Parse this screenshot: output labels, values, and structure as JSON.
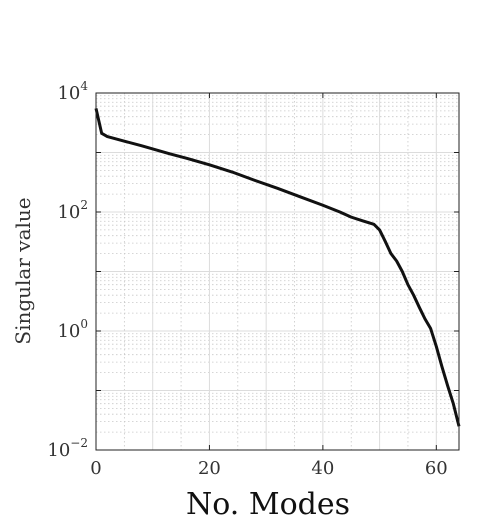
{
  "chart_data": {
    "type": "line",
    "title": "",
    "xlabel": "No. Modes",
    "ylabel": "Singular value",
    "xlim": [
      0,
      64
    ],
    "ylim": [
      0.01,
      10000
    ],
    "yscale": "log",
    "grid": true,
    "x_ticks": [
      {
        "value": 0,
        "label": "0"
      },
      {
        "value": 20,
        "label": "20"
      },
      {
        "value": 40,
        "label": "40"
      },
      {
        "value": 60,
        "label": "60"
      }
    ],
    "y_ticks": [
      {
        "value": 0.01,
        "base": "10",
        "exp": "−2"
      },
      {
        "value": 1,
        "base": "10",
        "exp": "0"
      },
      {
        "value": 100,
        "base": "10",
        "exp": "2"
      },
      {
        "value": 10000,
        "base": "10",
        "exp": "4"
      }
    ],
    "series": [
      {
        "color": "#111111",
        "x": [
          0,
          1,
          2,
          5,
          8,
          10,
          13,
          16,
          20,
          24,
          28,
          32,
          36,
          40,
          43,
          45,
          47,
          49,
          50,
          51,
          52,
          53,
          54,
          55,
          56,
          57,
          58,
          59,
          60,
          61,
          62,
          63,
          64
        ],
        "y": [
          5500,
          2100,
          1850,
          1550,
          1300,
          1150,
          950,
          800,
          620,
          470,
          340,
          250,
          180,
          130,
          100,
          82,
          71,
          62,
          50,
          32,
          20,
          15,
          10,
          6,
          4,
          2.5,
          1.6,
          1.1,
          0.55,
          0.25,
          0.12,
          0.06,
          0.025
        ]
      }
    ]
  }
}
